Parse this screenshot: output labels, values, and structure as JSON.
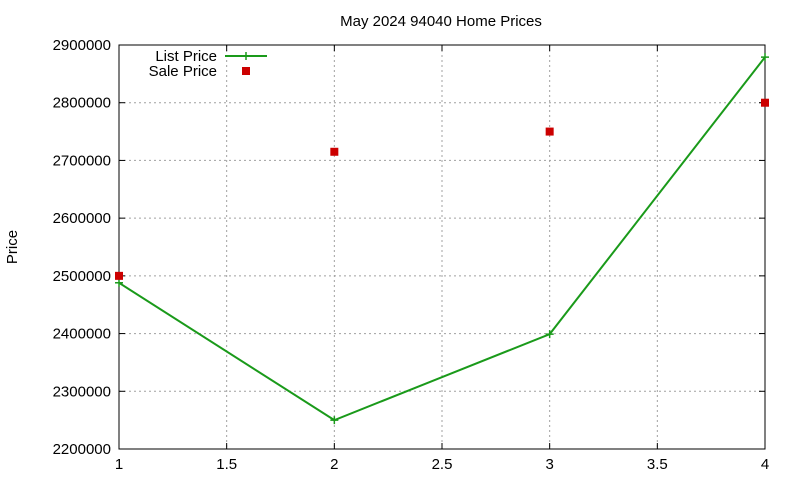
{
  "chart_data": {
    "type": "line",
    "title": "May 2024 94040 Home Prices",
    "xlabel": "",
    "ylabel": "Price",
    "xlim": [
      1,
      4
    ],
    "ylim": [
      2200000,
      2900000
    ],
    "x_ticks": [
      "1",
      "1.5",
      "2",
      "2.5",
      "3",
      "3.5",
      "4"
    ],
    "y_ticks": [
      "2200000",
      "2300000",
      "2400000",
      "2500000",
      "2600000",
      "2700000",
      "2800000",
      "2900000"
    ],
    "grid": true,
    "legend_position": "top-left",
    "series": [
      {
        "name": "List Price",
        "style": "line+cross",
        "color": "#1a9a1a",
        "x": [
          1,
          2,
          3,
          4
        ],
        "y": [
          2488000,
          2250000,
          2399000,
          2879000
        ]
      },
      {
        "name": "Sale Price",
        "style": "square",
        "color": "#cc0000",
        "x": [
          1,
          2,
          3,
          4
        ],
        "y": [
          2500000,
          2715000,
          2750000,
          2800000
        ]
      }
    ]
  }
}
